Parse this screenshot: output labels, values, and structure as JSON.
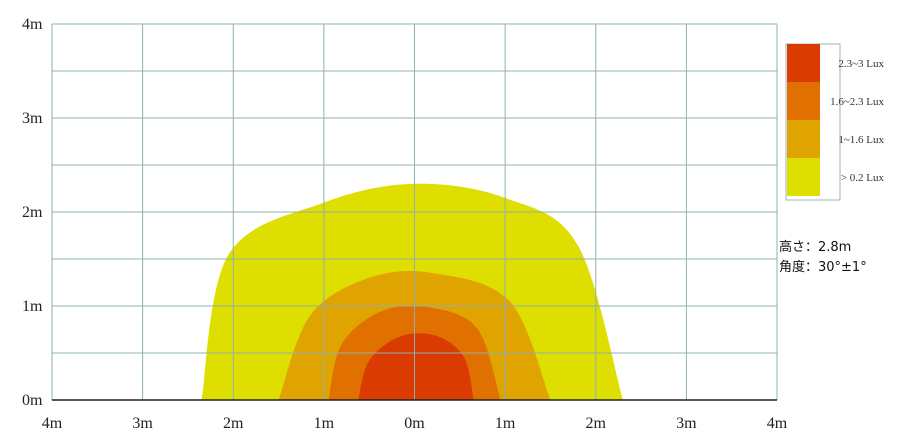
{
  "chart_data": {
    "type": "heatmap",
    "x_ticks": [
      "4m",
      "3m",
      "2m",
      "1m",
      "0m",
      "1m",
      "2m",
      "3m",
      "4m"
    ],
    "y_ticks": [
      "0m",
      "1m",
      "2m",
      "3m",
      "4m"
    ],
    "xlim": [
      -4,
      4
    ],
    "ylim": [
      0,
      4
    ],
    "grid": true,
    "legend_position": "right",
    "zones": [
      {
        "name": "> 0.2 Lux",
        "color": "#dede00",
        "boundary": [
          [
            -2.35,
            0
          ],
          [
            -2.05,
            1.55
          ],
          [
            -1.0,
            2.1
          ],
          [
            0,
            2.3
          ],
          [
            1.0,
            2.15
          ],
          [
            1.8,
            1.65
          ],
          [
            2.3,
            0
          ]
        ]
      },
      {
        "name": "1~1.6 Lux",
        "color": "#e0a400",
        "boundary": [
          [
            -1.5,
            0
          ],
          [
            -1.15,
            0.9
          ],
          [
            -0.5,
            1.3
          ],
          [
            0.2,
            1.35
          ],
          [
            1.05,
            1.05
          ],
          [
            1.5,
            0
          ]
        ]
      },
      {
        "name": "1.6~2.3 Lux",
        "color": "#e07000",
        "boundary": [
          [
            -0.95,
            0
          ],
          [
            -0.8,
            0.6
          ],
          [
            -0.35,
            0.95
          ],
          [
            0.2,
            0.98
          ],
          [
            0.7,
            0.75
          ],
          [
            0.95,
            0
          ]
        ]
      },
      {
        "name": "2.3~3 Lux",
        "color": "#d93b00",
        "boundary": [
          [
            -0.62,
            0
          ],
          [
            -0.5,
            0.42
          ],
          [
            -0.15,
            0.68
          ],
          [
            0.25,
            0.68
          ],
          [
            0.55,
            0.45
          ],
          [
            0.65,
            0
          ]
        ]
      }
    ]
  },
  "legend": [
    {
      "label": "2.3~3 Lux",
      "color": "#d93b00"
    },
    {
      "label": "1.6~2.3 Lux",
      "color": "#e07000"
    },
    {
      "label": "1~1.6 Lux",
      "color": "#e0a400"
    },
    {
      "label": "> 0.2 Lux",
      "color": "#dede00"
    }
  ],
  "info": {
    "height_text": "高さ：2.8m",
    "angle_text": "角度：30°±1°"
  }
}
